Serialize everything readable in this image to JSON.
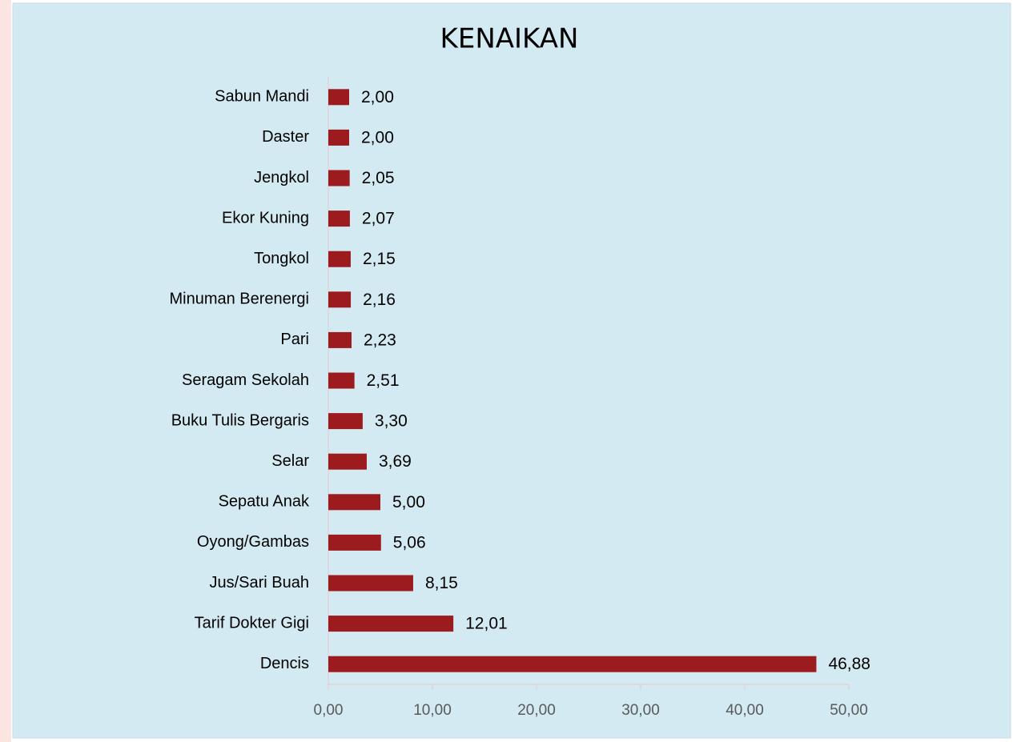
{
  "chart_data": {
    "type": "bar",
    "orientation": "horizontal",
    "title": "KENAIKAN",
    "categories": [
      "Sabun Mandi",
      "Daster",
      "Jengkol",
      "Ekor Kuning",
      "Tongkol",
      "Minuman Berenergi",
      "Pari",
      "Seragam Sekolah",
      "Buku Tulis Bergaris",
      "Selar",
      "Sepatu Anak",
      "Oyong/Gambas",
      "Jus/Sari Buah",
      "Tarif Dokter Gigi",
      "Dencis"
    ],
    "values": [
      2.0,
      2.0,
      2.05,
      2.07,
      2.15,
      2.16,
      2.23,
      2.51,
      3.3,
      3.69,
      5.0,
      5.06,
      8.15,
      12.01,
      46.88
    ],
    "value_labels": [
      "2,00",
      "2,00",
      "2,05",
      "2,07",
      "2,15",
      "2,16",
      "2,23",
      "2,51",
      "3,30",
      "3,69",
      "5,00",
      "5,06",
      "8,15",
      "12,01",
      "46,88"
    ],
    "color": "#9b1b1e",
    "xlim": [
      0,
      50
    ],
    "xticks": [
      {
        "value": 0,
        "label": "0,00"
      },
      {
        "value": 10,
        "label": "10,00"
      },
      {
        "value": 20,
        "label": "20,00"
      },
      {
        "value": 30,
        "label": "30,00"
      },
      {
        "value": 40,
        "label": "40,00"
      },
      {
        "value": 50,
        "label": "50,00"
      }
    ],
    "grid": false
  }
}
